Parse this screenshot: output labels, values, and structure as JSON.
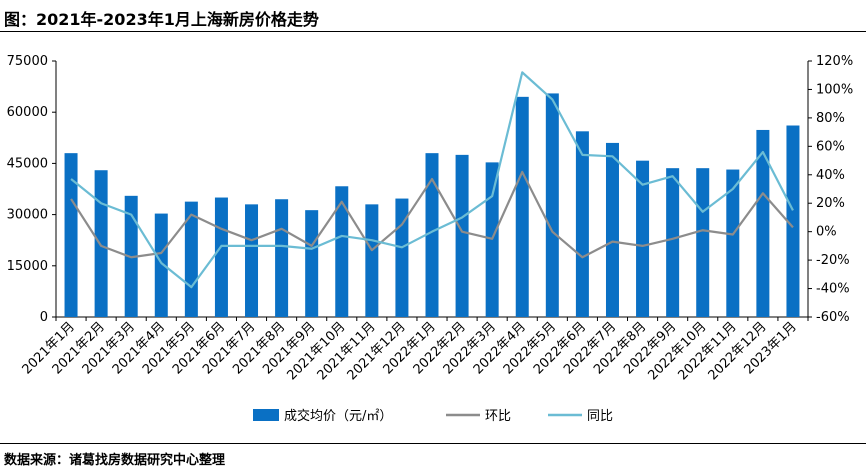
{
  "header": {
    "title": "图：2021年-2023年1月上海新房价格走势"
  },
  "footer": {
    "source": "数据来源：诸葛找房数据研究中心整理"
  },
  "chart_data": {
    "type": "bar+line",
    "categories": [
      "2021年1月",
      "2021年2月",
      "2021年3月",
      "2021年4月",
      "2021年5月",
      "2021年6月",
      "2021年7月",
      "2021年8月",
      "2021年9月",
      "2021年10月",
      "2021年11月",
      "2021年12月",
      "2022年1月",
      "2022年2月",
      "2022年3月",
      "2022年4月",
      "2022年5月",
      "2022年6月",
      "2022年7月",
      "2022年8月",
      "2022年9月",
      "2022年10月",
      "2022年11月",
      "2022年12月",
      "2023年1月"
    ],
    "series": [
      {
        "name": "成交均价（元/㎡）",
        "type": "bar",
        "axis": "left",
        "color": "#0a70c4",
        "values": [
          48000,
          43000,
          35500,
          30300,
          33800,
          35000,
          33000,
          34500,
          31300,
          38300,
          33000,
          34700,
          48000,
          47500,
          45300,
          64500,
          65500,
          54400,
          51000,
          45800,
          43600,
          43600,
          43200,
          54800,
          56100
        ]
      },
      {
        "name": "环比",
        "type": "line",
        "axis": "right",
        "color": "#8c8c8c",
        "values": [
          23,
          -10,
          -18,
          -15,
          12,
          2,
          -6,
          2,
          -10,
          21,
          -13,
          5,
          37,
          0,
          -5,
          42,
          0,
          -18,
          -7,
          -10,
          -5,
          1,
          -2,
          27,
          3
        ]
      },
      {
        "name": "同比",
        "type": "line",
        "axis": "right",
        "color": "#6bbcd4",
        "values": [
          37,
          20,
          12,
          -22,
          -39,
          -10,
          -10,
          -10,
          -12,
          -3,
          -6,
          -11,
          0,
          10,
          25,
          112,
          93,
          54,
          53,
          33,
          39,
          14,
          30,
          56,
          15
        ]
      }
    ],
    "left_axis": {
      "ylim": [
        0,
        75000
      ],
      "ticks": [
        "0",
        "15000",
        "30000",
        "45000",
        "60000",
        "75000"
      ]
    },
    "right_axis": {
      "ylim": [
        -60,
        120
      ],
      "ticks": [
        "-60%",
        "-40%",
        "-20%",
        "0%",
        "20%",
        "40%",
        "60%",
        "80%",
        "100%",
        "120%"
      ]
    },
    "grid": false,
    "legend": "bottom"
  }
}
